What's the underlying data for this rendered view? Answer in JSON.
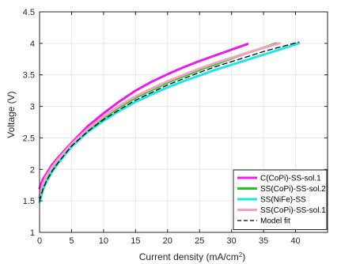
{
  "chart_data": {
    "type": "line",
    "xlabel": "Current density (mA/cm",
    "xlabel_sup": "2",
    "xlabel_end": ")",
    "ylabel": "Voltage (V)",
    "xlim": [
      0,
      45
    ],
    "ylim": [
      1,
      4.5
    ],
    "xticks": [
      0,
      5,
      10,
      15,
      20,
      25,
      30,
      35,
      40
    ],
    "yticks": [
      1,
      1.5,
      2,
      2.5,
      3,
      3.5,
      4,
      4.5
    ],
    "xtick_labels": [
      "0",
      "5",
      "10",
      "15",
      "20",
      "25",
      "30",
      "35",
      "40"
    ],
    "ytick_labels": [
      "1",
      "1.5",
      "2",
      "2.5",
      "3",
      "3.5",
      "4",
      "4.5"
    ],
    "legend_position": "bottom-right",
    "series": [
      {
        "name": "C(CoPi)-SS-sol.1",
        "color": "#e61ee6",
        "style": "solid",
        "x": [
          0,
          0.5,
          1,
          2,
          3,
          5,
          7.5,
          10,
          12.5,
          15,
          17.5,
          20,
          22.5,
          25,
          27.5,
          30,
          32.5
        ],
        "y": [
          1.7,
          1.84,
          1.92,
          2.08,
          2.2,
          2.42,
          2.68,
          2.89,
          3.08,
          3.25,
          3.39,
          3.51,
          3.62,
          3.72,
          3.81,
          3.9,
          3.99
        ]
      },
      {
        "name": "SS(CoPi)-SS-sol.2",
        "color": "#1ec81e",
        "style": "solid",
        "x": [
          0,
          0.5,
          1,
          2,
          3,
          5,
          7.5,
          10,
          12.5,
          15,
          17.5,
          20,
          22.5,
          25,
          27.5,
          30,
          32.5,
          35,
          37
        ],
        "y": [
          1.55,
          1.74,
          1.86,
          2.02,
          2.15,
          2.39,
          2.63,
          2.82,
          2.99,
          3.14,
          3.26,
          3.38,
          3.48,
          3.58,
          3.67,
          3.76,
          3.85,
          3.93,
          4.0
        ]
      },
      {
        "name": "SS(NiFe)-SS",
        "color": "#1ee6e6",
        "style": "solid",
        "x": [
          0,
          0.5,
          1,
          2,
          3,
          5,
          7.5,
          10,
          12.5,
          15,
          17.5,
          20,
          22.5,
          25,
          27.5,
          30,
          32.5,
          35,
          37.5,
          40.5
        ],
        "y": [
          1.48,
          1.66,
          1.79,
          1.97,
          2.11,
          2.36,
          2.59,
          2.77,
          2.93,
          3.07,
          3.19,
          3.3,
          3.4,
          3.49,
          3.58,
          3.66,
          3.74,
          3.82,
          3.9,
          4.0
        ]
      },
      {
        "name": "SS(CoPi)-SS-sol.1",
        "color": "#f5a0c0",
        "style": "solid",
        "x": [
          0,
          0.5,
          1,
          2,
          3,
          5,
          7.5,
          10,
          12.5,
          15,
          17.5,
          20,
          22.5,
          25,
          27.5,
          30,
          32.5,
          35,
          37.5
        ],
        "y": [
          1.58,
          1.76,
          1.88,
          2.04,
          2.17,
          2.4,
          2.64,
          2.84,
          3.01,
          3.16,
          3.28,
          3.4,
          3.5,
          3.6,
          3.69,
          3.77,
          3.85,
          3.93,
          4.0
        ]
      },
      {
        "name": "Model fit",
        "color": "#000000",
        "style": "dashed",
        "x": [
          0,
          0.5,
          1,
          2,
          3,
          5,
          7.5,
          10,
          12.5,
          15,
          17.5,
          20,
          22.5,
          25,
          27.5,
          30,
          32.5,
          35,
          37.5,
          40.5
        ],
        "y": [
          1.5,
          1.68,
          1.8,
          1.98,
          2.12,
          2.37,
          2.6,
          2.79,
          2.95,
          3.1,
          3.22,
          3.34,
          3.44,
          3.54,
          3.63,
          3.71,
          3.79,
          3.87,
          3.94,
          4.02
        ]
      }
    ]
  }
}
